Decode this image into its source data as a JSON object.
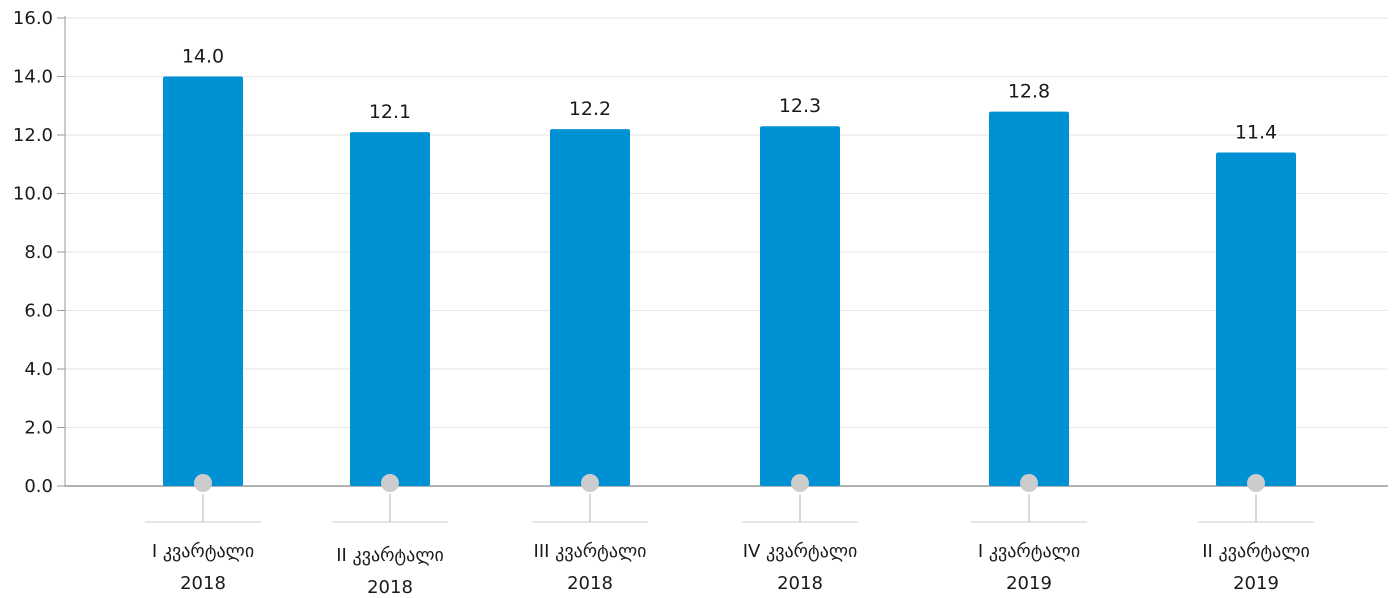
{
  "chart_data": {
    "type": "bar",
    "categories": [
      [
        "I კვარტალი",
        "2018"
      ],
      [
        "II კვარტალი",
        "2018"
      ],
      [
        "III კვარტალი",
        "2018"
      ],
      [
        "IV კვარტალი",
        "2018"
      ],
      [
        "I კვარტალი",
        "2019"
      ],
      [
        "II კვარტალი",
        "2019"
      ]
    ],
    "values": [
      14.0,
      12.1,
      12.2,
      12.3,
      12.8,
      11.4
    ],
    "value_labels": [
      "14.0",
      "12.1",
      "12.2",
      "12.3",
      "12.8",
      "11.4"
    ],
    "y_ticks": [
      "0.0",
      "2.0",
      "4.0",
      "6.0",
      "8.0",
      "10.0",
      "12.0",
      "14.0",
      "16.0"
    ],
    "ylim": [
      0,
      16
    ],
    "title": "",
    "xlabel": "",
    "ylabel": "",
    "grid": true,
    "legend": "none",
    "colors": {
      "bar": "#0090d4",
      "grid": "#e6e6e6",
      "axis": "#999999",
      "marker": "#cccccc",
      "connector": "#cccccc"
    }
  }
}
